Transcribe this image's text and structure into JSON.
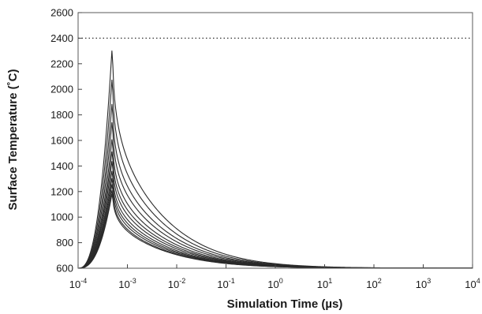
{
  "chart_data": {
    "type": "line",
    "title": "",
    "xlabel": "Simulation Time (µs)",
    "ylabel": "Surface Temperature (˚C)",
    "x_scale": "log",
    "xlim": [
      0.0001,
      10000
    ],
    "ylim": [
      600,
      2600
    ],
    "grid": false,
    "legend": "none",
    "x_ticks": [
      0.0001,
      0.001,
      0.01,
      0.1,
      1,
      10,
      100,
      1000,
      10000
    ],
    "y_ticks": [
      600,
      800,
      1000,
      1200,
      1400,
      1600,
      1800,
      2000,
      2200,
      2400,
      2600
    ],
    "x_tick_labels": [
      {
        "base": "10",
        "exp": "-4"
      },
      {
        "base": "10",
        "exp": "-3"
      },
      {
        "base": "10",
        "exp": "-2"
      },
      {
        "base": "10",
        "exp": "-1"
      },
      {
        "base": "10",
        "exp": "0"
      },
      {
        "base": "10",
        "exp": "1"
      },
      {
        "base": "10",
        "exp": "2"
      },
      {
        "base": "10",
        "exp": "3"
      },
      {
        "base": "10",
        "exp": "4"
      }
    ],
    "y_tick_labels": [
      "600",
      "800",
      "1000",
      "1200",
      "1400",
      "1600",
      "1800",
      "2000",
      "2200",
      "2400",
      "2600"
    ],
    "reference_line": {
      "y": 2400,
      "style": "dotted"
    },
    "baseline_temperature": 600,
    "onset_time": 0.0001,
    "peak_time": 0.0005,
    "curve_peaks": [
      2390,
      2150,
      1950,
      1800,
      1660,
      1560,
      1480,
      1400,
      1340,
      1290,
      1240,
      1210
    ],
    "series": [
      {
        "x": [
          0.0001,
          0.0003,
          0.0005,
          0.005,
          0.05,
          0.5,
          5,
          50,
          500,
          10000
        ],
        "y": [
          600,
          1430,
          2390,
          1700,
          1270,
          940,
          730,
          640,
          612,
          602
        ]
      },
      {
        "x": [
          0.0001,
          0.0003,
          0.0005,
          0.005,
          0.05,
          0.5,
          5,
          50,
          500,
          10000
        ],
        "y": [
          600,
          1330,
          2150,
          1560,
          1210,
          910,
          720,
          636,
          610,
          602
        ]
      },
      {
        "x": [
          0.0001,
          0.0003,
          0.0005,
          0.005,
          0.05,
          0.5,
          5,
          50,
          500,
          10000
        ],
        "y": [
          600,
          1250,
          1950,
          1450,
          1150,
          890,
          710,
          632,
          609,
          602
        ]
      },
      {
        "x": [
          0.0001,
          0.0003,
          0.0005,
          0.005,
          0.05,
          0.5,
          5,
          50,
          500,
          10000
        ],
        "y": [
          600,
          1190,
          1800,
          1370,
          1100,
          870,
          700,
          628,
          608,
          602
        ]
      },
      {
        "x": [
          0.0001,
          0.0003,
          0.0005,
          0.005,
          0.05,
          0.5,
          5,
          50,
          500,
          10000
        ],
        "y": [
          600,
          1130,
          1660,
          1290,
          1050,
          850,
          690,
          625,
          607,
          602
        ]
      },
      {
        "x": [
          0.0001,
          0.0003,
          0.0005,
          0.005,
          0.05,
          0.5,
          5,
          50,
          500,
          10000
        ],
        "y": [
          600,
          1090,
          1560,
          1230,
          1010,
          830,
          680,
          622,
          606,
          602
        ]
      },
      {
        "x": [
          0.0001,
          0.0003,
          0.0005,
          0.005,
          0.05,
          0.5,
          5,
          50,
          500,
          10000
        ],
        "y": [
          600,
          1060,
          1480,
          1190,
          980,
          815,
          675,
          620,
          606,
          602
        ]
      },
      {
        "x": [
          0.0001,
          0.0003,
          0.0005,
          0.005,
          0.05,
          0.5,
          5,
          50,
          500,
          10000
        ],
        "y": [
          600,
          1020,
          1400,
          1150,
          960,
          800,
          670,
          618,
          605,
          602
        ]
      },
      {
        "x": [
          0.0001,
          0.0003,
          0.0005,
          0.005,
          0.05,
          0.5,
          5,
          50,
          500,
          10000
        ],
        "y": [
          600,
          995,
          1340,
          1110,
          935,
          790,
          665,
          616,
          605,
          602
        ]
      },
      {
        "x": [
          0.0001,
          0.0003,
          0.0005,
          0.005,
          0.05,
          0.5,
          5,
          50,
          500,
          10000
        ],
        "y": [
          600,
          975,
          1290,
          1080,
          915,
          780,
          660,
          615,
          604,
          602
        ]
      },
      {
        "x": [
          0.0001,
          0.0003,
          0.0005,
          0.005,
          0.05,
          0.5,
          5,
          50,
          500,
          10000
        ],
        "y": [
          600,
          955,
          1240,
          1050,
          900,
          770,
          655,
          614,
          604,
          602
        ]
      },
      {
        "x": [
          0.0001,
          0.0003,
          0.0005,
          0.005,
          0.05,
          0.5,
          5,
          50,
          500,
          10000
        ],
        "y": [
          600,
          940,
          1210,
          1030,
          890,
          765,
          652,
          613,
          604,
          602
        ]
      }
    ],
    "line_color": "#2a2a2a",
    "background_color": "#ffffff"
  }
}
